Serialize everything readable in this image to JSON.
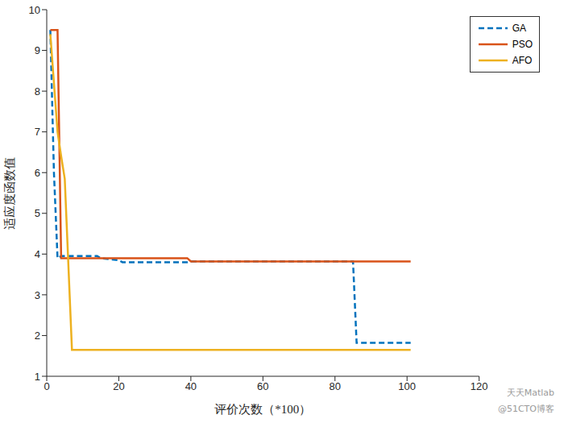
{
  "chart_data": {
    "type": "line",
    "x_label": "评价次数（*100）",
    "y_label": "适应度函数值",
    "x": [
      1,
      2,
      3,
      4,
      5,
      7,
      10,
      14,
      15,
      20,
      21,
      39,
      40,
      85,
      86,
      101
    ],
    "series": [
      {
        "name": "GA",
        "color": "#0072BD",
        "line_style": "dashed",
        "values": [
          9.5,
          6.0,
          3.9,
          3.95,
          3.95,
          3.95,
          3.95,
          3.95,
          3.9,
          3.85,
          3.8,
          3.8,
          3.82,
          3.82,
          1.82,
          1.82
        ]
      },
      {
        "name": "PSO",
        "color": "#D95319",
        "line_style": "solid",
        "values": [
          9.5,
          9.5,
          9.5,
          3.9,
          3.9,
          3.9,
          3.9,
          3.9,
          3.9,
          3.9,
          3.9,
          3.9,
          3.82,
          3.82,
          3.82,
          3.82
        ]
      },
      {
        "name": "AFO",
        "color": "#EDB120",
        "line_style": "solid",
        "values": [
          9.4,
          8.2,
          7.0,
          6.4,
          5.85,
          1.65,
          1.65,
          1.65,
          1.65,
          1.65,
          1.65,
          1.65,
          1.65,
          1.65,
          1.65,
          1.65
        ]
      }
    ],
    "xlim": [
      0,
      120
    ],
    "xticks": [
      0,
      20,
      40,
      60,
      80,
      100,
      120
    ],
    "ylim": [
      1,
      10
    ],
    "yticks": [
      1,
      2,
      3,
      4,
      5,
      6,
      7,
      8,
      9,
      10
    ],
    "grid": false,
    "legend": "top-right",
    "annotations": [
      "天天Matlab",
      "@51CTO博客"
    ]
  }
}
